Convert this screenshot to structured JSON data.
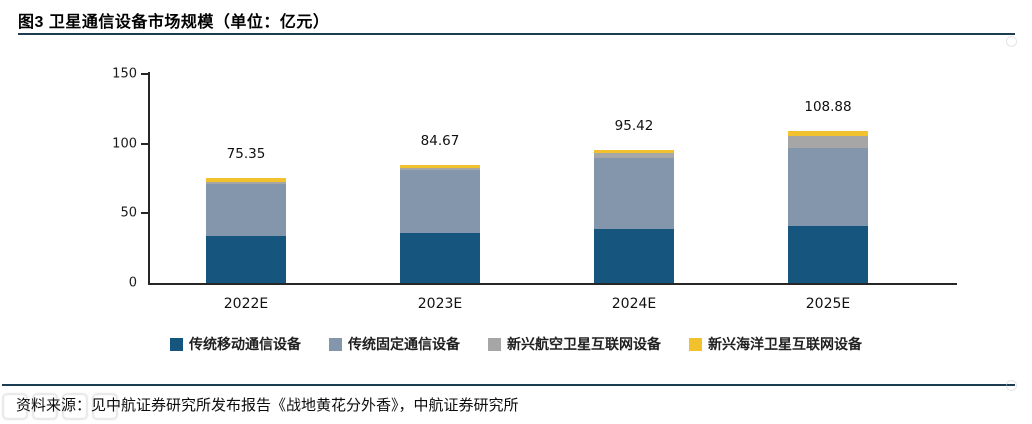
{
  "title": "图3 卫星通信设备市场规模（单位：亿元）",
  "source": "资料来源：见中航证券研究所发布报告《战地黄花分外香》，中航证券研究所",
  "colors": {
    "rule": "#1c3c52",
    "axis": "#262626",
    "series_mobile": "#16567E",
    "series_fixed": "#8496AB",
    "series_aero": "#A6A6A6",
    "series_marine": "#F2C12E",
    "background": "#FFFFFF"
  },
  "chart_data": {
    "type": "bar",
    "stacked": true,
    "title": "图3 卫星通信设备市场规模（单位：亿元）",
    "categories": [
      "2022E",
      "2023E",
      "2024E",
      "2025E"
    ],
    "totals": [
      75.35,
      84.67,
      95.42,
      108.88
    ],
    "total_labels": [
      "75.35",
      "84.67",
      "95.42",
      "108.88"
    ],
    "series": [
      {
        "name": "传统移动通信设备",
        "color": "#16567E",
        "values": [
          34.0,
          36.0,
          39.0,
          41.0
        ]
      },
      {
        "name": "传统固定通信设备",
        "color": "#8496AB",
        "values": [
          37.0,
          45.0,
          51.0,
          56.0
        ]
      },
      {
        "name": "新兴航空卫星互联网设备",
        "color": "#A6A6A6",
        "values": [
          1.2,
          1.5,
          3.0,
          8.8
        ]
      },
      {
        "name": "新兴海洋卫星互联网设备",
        "color": "#F2C12E",
        "values": [
          3.15,
          2.17,
          2.42,
          3.08
        ]
      }
    ],
    "xlabel": "",
    "ylabel": "",
    "ylim": [
      0,
      150
    ],
    "yticks": [
      0,
      50,
      100,
      150
    ],
    "grid": false,
    "legend_position": "bottom"
  }
}
